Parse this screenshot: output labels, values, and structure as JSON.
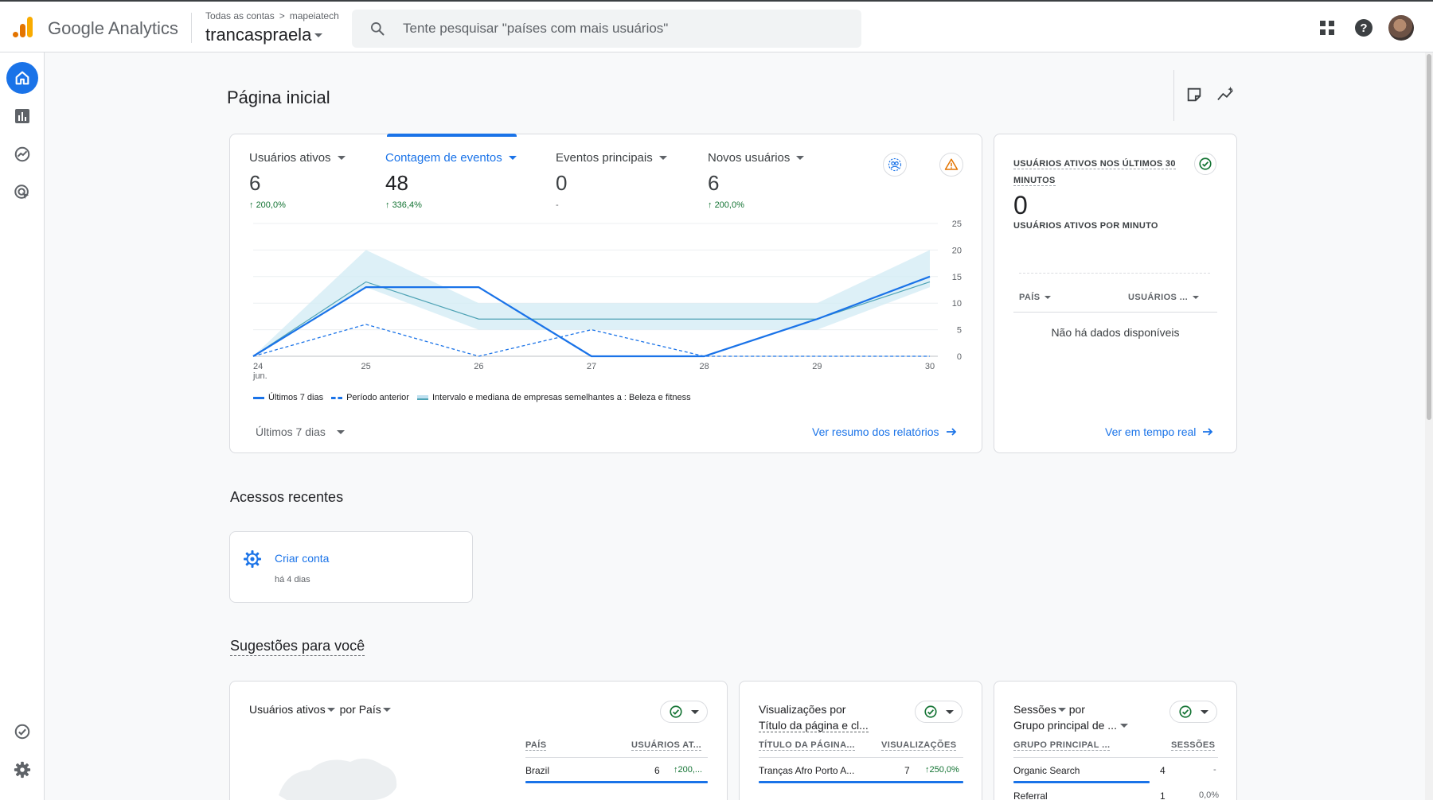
{
  "topbar": {
    "brand": "Google Analytics",
    "breadcrumb": [
      "Todas as contas",
      "mapeiatech"
    ],
    "breadcrumb_sep": ">",
    "property": "trancaspraela",
    "search_placeholder": "Tente pesquisar \"países com mais usuários\""
  },
  "page": {
    "title": "Página inicial"
  },
  "metrics": [
    {
      "label": "Usuários ativos",
      "value": "6",
      "delta": "200,0%"
    },
    {
      "label": "Contagem de eventos",
      "value": "48",
      "delta": "336,4%",
      "active": true
    },
    {
      "label": "Eventos principais",
      "value": "0",
      "delta": "-"
    },
    {
      "label": "Novos usuários",
      "value": "6",
      "delta": "200,0%"
    }
  ],
  "chart_data": {
    "type": "line",
    "x_tick_labels": [
      "24",
      "25",
      "26",
      "27",
      "28",
      "29",
      "30"
    ],
    "x_sub_label": "jun.",
    "y_ticks": [
      0,
      5,
      10,
      15,
      20,
      25
    ],
    "ylim": [
      0,
      25
    ],
    "y_axis_side": "right",
    "grid": true,
    "series": [
      {
        "name": "Últimos 7 dias",
        "style": "solid",
        "color": "#1a73e8",
        "values": [
          0,
          13,
          13,
          0,
          0,
          7,
          15
        ]
      },
      {
        "name": "Período anterior",
        "style": "dashed",
        "color": "#1a73e8",
        "values": [
          0,
          6,
          0,
          5,
          0,
          0,
          0
        ]
      },
      {
        "name": "Intervalo e mediana de empresas semelhantes a : Beleza e fitness",
        "style": "band",
        "color": "#4fa3b5",
        "median": [
          0,
          14,
          7,
          7,
          7,
          7,
          14
        ],
        "band_low": [
          0,
          13,
          5,
          5,
          5,
          5,
          13
        ],
        "band_high": [
          0,
          20,
          10,
          10,
          10,
          10,
          20
        ]
      }
    ],
    "legend_position": "bottom"
  },
  "overview": {
    "period": "Últimos 7 dias",
    "link": "Ver resumo dos relatórios"
  },
  "realtime": {
    "title": "USUÁRIOS ATIVOS NOS ÚLTIMOS 30 MINUTOS",
    "value": "0",
    "subtitle": "USUÁRIOS ATIVOS POR MINUTO",
    "col_country": "PAÍS",
    "col_users": "USUÁRIOS ...",
    "nodata": "Não há dados disponíveis",
    "link": "Ver em tempo real"
  },
  "recent": {
    "title": "Acessos recentes",
    "item_label": "Criar conta",
    "item_time": "há 4 dias"
  },
  "suggestions": {
    "title": "Sugestões para você",
    "cards": [
      {
        "title_a": "Usuários ativos",
        "title_b": "por País",
        "col1": "PAÍS",
        "col2": "USUÁRIOS AT...",
        "rows": [
          {
            "name": "Brazil",
            "value": "6",
            "delta": "200,..."
          }
        ]
      },
      {
        "title_a": "Visualizações por",
        "title_b": "Título da página e cl...",
        "col1": "TÍTULO DA PÁGINA...",
        "col2": "VISUALIZAÇÕES",
        "rows": [
          {
            "name": "Tranças Afro Porto A...",
            "value": "7",
            "delta": "250,0%"
          }
        ]
      },
      {
        "title_a": "Sessões",
        "title_b": "por",
        "title_c": "Grupo principal de ...",
        "col1": "GRUPO PRINCIPAL ...",
        "col2": "SESSÕES",
        "rows": [
          {
            "name": "Organic Search",
            "value": "4",
            "delta": "-"
          },
          {
            "name": "Referral",
            "value": "1",
            "delta": "0,0%"
          }
        ]
      }
    ]
  },
  "colors": {
    "accent": "#1a73e8",
    "positive": "#137333",
    "warning": "#e37400"
  }
}
